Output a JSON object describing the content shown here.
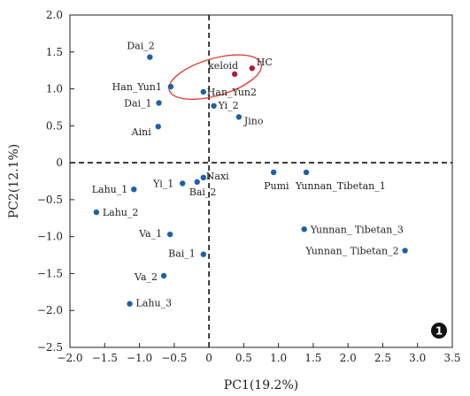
{
  "chart_data": {
    "type": "scatter",
    "xlabel": "PC1(19.2%)",
    "ylabel": "PC2(12.1%)",
    "xlim": [
      -2.0,
      3.5
    ],
    "ylim": [
      -2.5,
      2.0
    ],
    "xticks": [
      "−2.0",
      "−1.5",
      "−1.0",
      "−0.5",
      "0",
      "0.5",
      "1.0",
      "1.5",
      "2.0",
      "2.5",
      "3.0",
      "3.5"
    ],
    "yticks": [
      "2.0",
      "1.5",
      "1.0",
      "0.5",
      "0",
      "−0.5",
      "−1.0",
      "−1.5",
      "−2.0",
      "−2.5"
    ],
    "grid": false,
    "reference_lines": {
      "x": 0,
      "y": 0,
      "style": "dashed"
    },
    "badge": "1",
    "colors": {
      "point": "#1f5fa8",
      "highlight_point": "#a8203a",
      "ellipse": "#e03a2e",
      "axis": "#222222"
    },
    "points": [
      {
        "label": "Dai_2",
        "x": -0.85,
        "y": 1.43
      },
      {
        "label": "keloid",
        "x": 0.37,
        "y": 1.2,
        "highlight": true
      },
      {
        "label": "HC",
        "x": 0.62,
        "y": 1.28,
        "highlight": true
      },
      {
        "label": "Han_Yun1",
        "x": -0.55,
        "y": 1.03
      },
      {
        "label": "Han_Yun2",
        "x": -0.08,
        "y": 0.96
      },
      {
        "label": "Dai_1",
        "x": -0.72,
        "y": 0.81
      },
      {
        "label": "Yi_2",
        "x": 0.07,
        "y": 0.77
      },
      {
        "label": "Jino",
        "x": 0.43,
        "y": 0.62
      },
      {
        "label": "Aini",
        "x": -0.73,
        "y": 0.49
      },
      {
        "label": "Pumi",
        "x": 0.93,
        "y": -0.13
      },
      {
        "label": "Yunnan_Tibetan_1",
        "x": 1.4,
        "y": -0.13
      },
      {
        "label": "Naxi",
        "x": -0.08,
        "y": -0.2
      },
      {
        "label": "Yi_1",
        "x": -0.38,
        "y": -0.28
      },
      {
        "label": "Bai_2",
        "x": -0.17,
        "y": -0.26
      },
      {
        "label": "Lahu_1",
        "x": -1.08,
        "y": -0.36
      },
      {
        "label": "Lahu_2",
        "x": -1.62,
        "y": -0.67
      },
      {
        "label": "Yunnan_ Tibetan_3",
        "x": 1.37,
        "y": -0.9
      },
      {
        "label": "Va_1",
        "x": -0.56,
        "y": -0.97
      },
      {
        "label": "Yunnan_ Tibetan_2",
        "x": 2.82,
        "y": -1.19
      },
      {
        "label": "Bai_1",
        "x": -0.08,
        "y": -1.24
      },
      {
        "label": "Va_2",
        "x": -0.65,
        "y": -1.53
      },
      {
        "label": "Lahu_3",
        "x": -1.14,
        "y": -1.91
      }
    ]
  }
}
